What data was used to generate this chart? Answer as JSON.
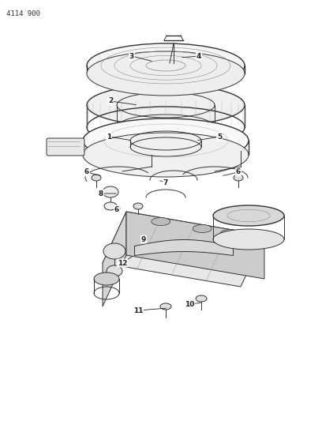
{
  "title_ref": "4114 900",
  "bg_color": "#ffffff",
  "line_color": "#333333",
  "label_color": "#222222",
  "label_fontsize": 6.5,
  "fig_width": 4.08,
  "fig_height": 5.33,
  "dpi": 100
}
